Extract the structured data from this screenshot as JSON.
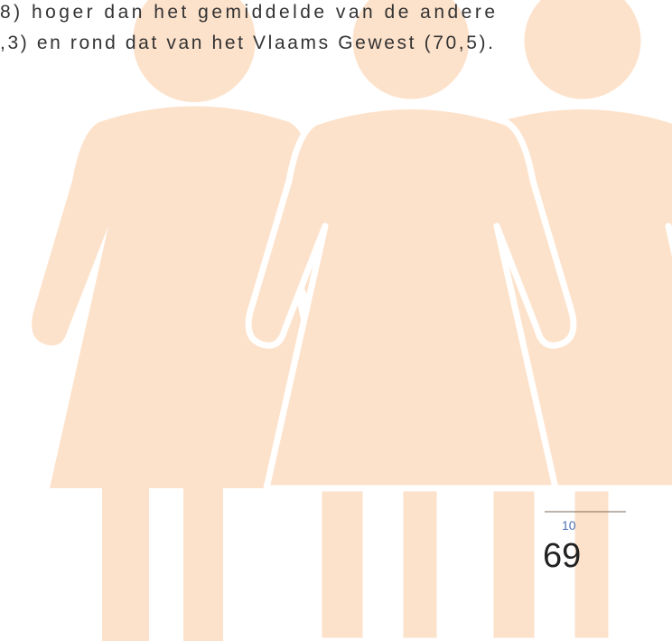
{
  "text": {
    "lines": [
      "8) hoger dan het gemiddelde van de andere",
      ",3) en rond dat van het Vlaams Gewest (70,5)."
    ]
  },
  "footnote": {
    "marker": "10"
  },
  "page_number": "69"
}
